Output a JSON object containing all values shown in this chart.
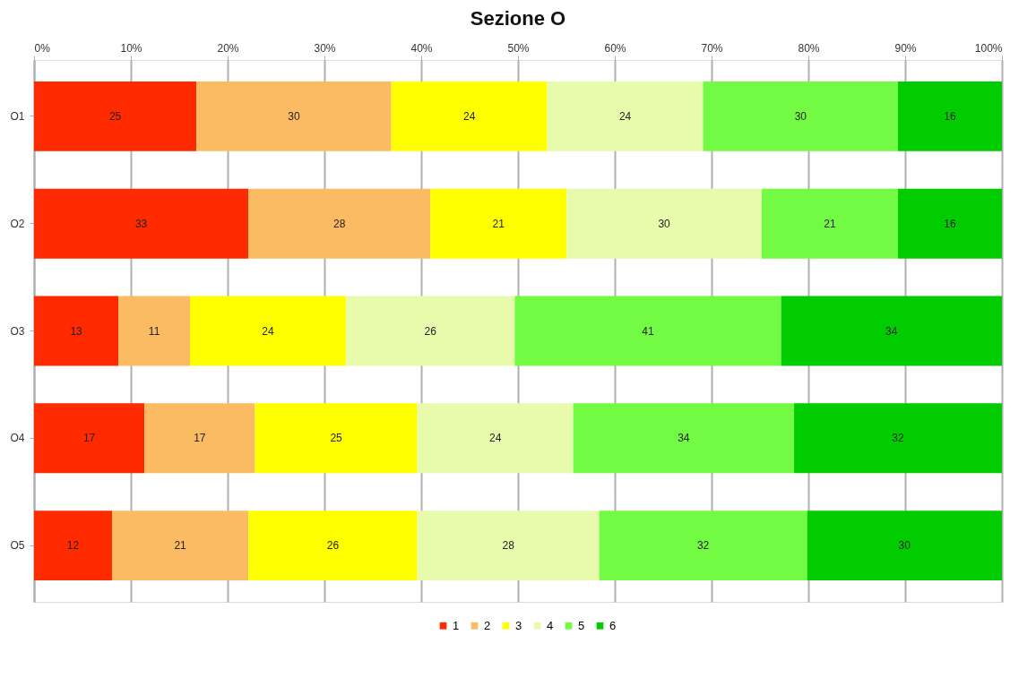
{
  "chart_data": {
    "type": "bar",
    "title": "Sezione O",
    "orientation": "horizontal",
    "stacked": true,
    "categories": [
      "O1",
      "O2",
      "O3",
      "O4",
      "O5"
    ],
    "series": [
      {
        "name": "1",
        "color": "#ff2a00",
        "values": [
          25,
          33,
          13,
          17,
          12
        ]
      },
      {
        "name": "2",
        "color": "#fbbb62",
        "values": [
          30,
          28,
          11,
          17,
          21
        ]
      },
      {
        "name": "3",
        "color": "#ffff00",
        "values": [
          24,
          21,
          24,
          25,
          26
        ]
      },
      {
        "name": "4",
        "color": "#e8fbad",
        "values": [
          24,
          30,
          26,
          24,
          28
        ]
      },
      {
        "name": "5",
        "color": "#73fb43",
        "values": [
          30,
          21,
          41,
          34,
          32
        ]
      },
      {
        "name": "6",
        "color": "#00cc00",
        "values": [
          16,
          16,
          34,
          32,
          30
        ]
      }
    ],
    "xlim": [
      0,
      149
    ],
    "x2lim": [
      0,
      100
    ],
    "x2ticks": [
      {
        "value": 0,
        "label": "0%"
      },
      {
        "value": 10,
        "label": "10%"
      },
      {
        "value": 20,
        "label": "20%"
      },
      {
        "value": 30,
        "label": "30%"
      },
      {
        "value": 40,
        "label": "40%"
      },
      {
        "value": 50,
        "label": "50%"
      },
      {
        "value": 60,
        "label": "60%"
      },
      {
        "value": 70,
        "label": "70%"
      },
      {
        "value": 80,
        "label": "80%"
      },
      {
        "value": 90,
        "label": "90%"
      },
      {
        "value": 100,
        "label": "100%"
      }
    ],
    "data_labels": true,
    "grid": "x",
    "legend": "bottom"
  }
}
